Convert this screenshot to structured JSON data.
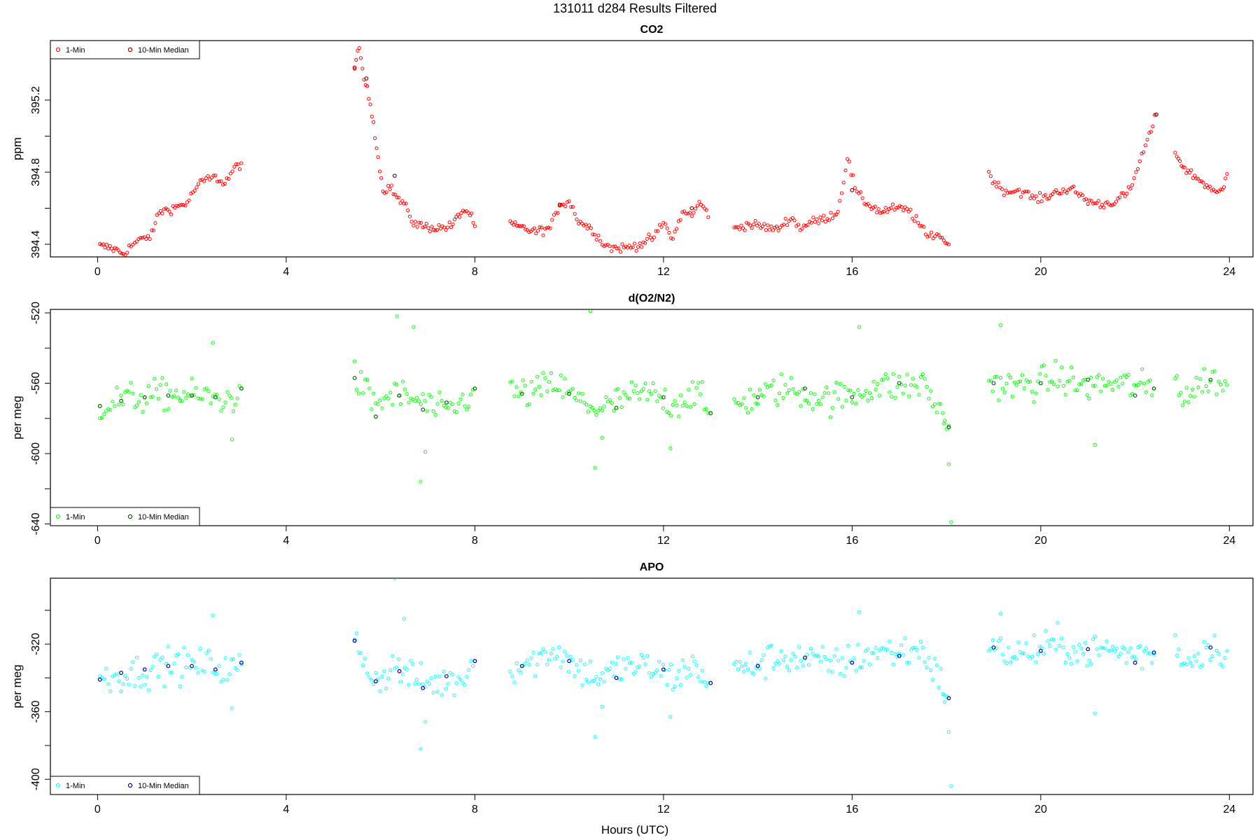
{
  "figure": {
    "title": "131011   d284   Results Filtered",
    "xlabel": "Hours (UTC)"
  },
  "chart_data": [
    {
      "type": "scatter",
      "title": "CO2",
      "xlabel": "",
      "ylabel": "ppm",
      "xlim": [
        -1,
        24.5
      ],
      "ylim": [
        394.33,
        395.53
      ],
      "xticks": [
        0,
        4,
        8,
        12,
        16,
        20,
        24
      ],
      "yticks_labeled": [
        394.4,
        394.8,
        395.2
      ],
      "yticks_minor": [
        394.6,
        395.0
      ],
      "legend": {
        "position": "top-left",
        "entries": [
          "1-Min",
          "10-Min Median"
        ]
      },
      "series": [
        {
          "name": "1-Min",
          "color": "#ff0000",
          "segments": [
            {
              "x": [
                0.05,
                0.3,
                0.55,
                0.75,
                0.95,
                1.15,
                1.3,
                1.6,
                1.9,
                2.1,
                2.3,
                2.5,
                2.7,
                2.9,
                3.05
              ],
              "y": [
                394.39,
                394.38,
                394.35,
                394.4,
                394.43,
                394.45,
                394.58,
                394.6,
                394.63,
                394.72,
                394.76,
                394.77,
                394.74,
                394.82,
                394.85
              ]
            },
            {
              "x": [
                5.45,
                5.55,
                5.65,
                5.75,
                5.85,
                5.95,
                6.05,
                6.2,
                6.35,
                6.5,
                6.7,
                6.9,
                7.2,
                7.5,
                7.75,
                7.9,
                8.0
              ],
              "y": [
                395.38,
                395.48,
                395.32,
                395.22,
                395.08,
                394.88,
                394.7,
                394.72,
                394.66,
                394.62,
                394.52,
                394.5,
                394.49,
                394.5,
                394.59,
                394.57,
                394.5
              ]
            },
            {
              "x": [
                8.75,
                9.0,
                9.3,
                9.6,
                9.8,
                10.0,
                10.2,
                10.5,
                10.7,
                10.9,
                11.2,
                11.5,
                11.8,
                12.0,
                12.2,
                12.4,
                12.6,
                12.8,
                12.95
              ],
              "y": [
                394.51,
                394.49,
                394.47,
                394.49,
                394.62,
                394.64,
                394.53,
                394.48,
                394.41,
                394.38,
                394.38,
                394.4,
                394.44,
                394.52,
                394.43,
                394.58,
                394.56,
                394.64,
                394.55
              ]
            },
            {
              "x": [
                13.5,
                13.8,
                14.1,
                14.4,
                14.7,
                14.9,
                15.1,
                15.4,
                15.7,
                15.9,
                16.1,
                16.3,
                16.6,
                16.9,
                17.2,
                17.4,
                17.6,
                17.8,
                18.05
              ],
              "y": [
                394.49,
                394.51,
                394.5,
                394.48,
                394.55,
                394.49,
                394.52,
                394.54,
                394.58,
                394.88,
                394.68,
                394.63,
                394.58,
                394.6,
                394.59,
                394.52,
                394.44,
                394.46,
                394.4
              ]
            },
            {
              "x": [
                18.9,
                19.1,
                19.3,
                19.5,
                19.7,
                19.9,
                20.1,
                20.4,
                20.7,
                21.0,
                21.3,
                21.6,
                21.9,
                22.1,
                22.3,
                22.45
              ],
              "y": [
                394.79,
                394.72,
                394.69,
                394.7,
                394.68,
                394.65,
                394.66,
                394.7,
                394.7,
                394.64,
                394.62,
                394.64,
                394.7,
                394.86,
                395.0,
                395.12
              ]
            },
            {
              "x": [
                22.85,
                22.95,
                23.05,
                23.55,
                23.7,
                23.85,
                23.95
              ],
              "y": [
                394.92,
                394.86,
                394.82,
                394.72,
                394.68,
                394.7,
                394.79
              ]
            }
          ]
        },
        {
          "name": "10-Min Median",
          "color": "#8b0000",
          "x": [
            5.45,
            5.7,
            6.3,
            9.8,
            12.6,
            16.0,
            22.45
          ],
          "y": [
            395.38,
            395.32,
            394.78,
            394.62,
            394.6,
            394.7,
            395.12
          ]
        }
      ]
    },
    {
      "type": "scatter",
      "title": "d(O2/N2)",
      "xlabel": "",
      "ylabel": "per meg",
      "xlim": [
        -1,
        24.5
      ],
      "ylim": [
        -641,
        -518
      ],
      "xticks": [
        0,
        4,
        8,
        12,
        16,
        20,
        24
      ],
      "yticks_labeled": [
        -520,
        -560,
        -600,
        -640
      ],
      "yticks_minor": [
        -540,
        -580,
        -620
      ],
      "legend": {
        "position": "bottom-left",
        "entries": [
          "1-Min",
          "10-Min Median"
        ]
      },
      "series": [
        {
          "name": "1-Min",
          "color": "#00ff00",
          "segments": [
            {
              "x": [
                0.05,
                0.5,
                1.0,
                1.5,
                2.0,
                2.4,
                2.8,
                3.05
              ],
              "y": [
                -573,
                -569,
                -568,
                -566,
                -567,
                -568,
                -570,
                -563
              ]
            },
            {
              "x": [
                5.45,
                5.9,
                6.3,
                6.9,
                7.3,
                7.7,
                8.0
              ],
              "y": [
                -557,
                -572,
                -566,
                -571,
                -577,
                -572,
                -563
              ]
            },
            {
              "x": [
                8.75,
                9.2,
                9.7,
                10.2,
                10.7,
                11.2,
                11.7,
                12.2,
                12.7,
                12.95
              ],
              "y": [
                -565,
                -566,
                -560,
                -570,
                -575,
                -568,
                -566,
                -572,
                -564,
                -577
              ]
            },
            {
              "x": [
                13.5,
                14.0,
                14.5,
                15.0,
                15.5,
                16.0,
                16.5,
                17.0,
                17.5,
                18.05
              ],
              "y": [
                -572,
                -568,
                -563,
                -566,
                -569,
                -567,
                -561,
                -562,
                -560,
                -584
              ]
            },
            {
              "x": [
                18.9,
                19.4,
                19.9,
                20.4,
                20.9,
                21.4,
                21.9,
                22.4
              ],
              "y": [
                -559,
                -562,
                -560,
                -557,
                -562,
                -560,
                -561,
                -563
              ]
            },
            {
              "x": [
                22.85,
                23.05,
                23.55,
                23.95
              ],
              "y": [
                -556,
                -568,
                -557,
                -561
              ]
            }
          ],
          "outliers": {
            "x": [
              2.45,
              2.85,
              6.35,
              6.7,
              6.85,
              6.95,
              10.45,
              10.55,
              16.15,
              17.95,
              18.05,
              18.1,
              19.15,
              21.15,
              12.15,
              10.7
            ],
            "y": [
              -537,
              -592,
              -522,
              -528,
              -616,
              -599,
              -519,
              -608,
              -528,
              -583,
              -606,
              -639,
              -527,
              -595,
              -597,
              -591
            ]
          }
        },
        {
          "name": "10-Min Median",
          "color": "#006400",
          "x": [
            0.05,
            0.5,
            1.0,
            1.5,
            2.0,
            2.5,
            3.05,
            5.45,
            5.9,
            6.4,
            6.9,
            7.4,
            8.0,
            9.0,
            10.0,
            11.0,
            12.0,
            13.0,
            14.0,
            15.0,
            16.0,
            17.0,
            18.05,
            19.0,
            20.0,
            21.0,
            22.0,
            22.4,
            23.6
          ],
          "y": [
            -573,
            -570,
            -568,
            -567,
            -567,
            -568,
            -563,
            -557,
            -579,
            -567,
            -575,
            -571,
            -563,
            -566,
            -566,
            -574,
            -568,
            -577,
            -568,
            -563,
            -568,
            -560,
            -585,
            -560,
            -560,
            -558,
            -567,
            -563,
            -558
          ]
        }
      ]
    },
    {
      "type": "scatter",
      "title": "APO",
      "xlabel": "",
      "ylabel": "per meg",
      "xlim": [
        -1,
        24.5
      ],
      "ylim": [
        -409,
        -281
      ],
      "xticks": [
        0,
        4,
        8,
        12,
        16,
        20,
        24
      ],
      "yticks_labeled": [
        -320,
        -360,
        -400
      ],
      "yticks_minor": [
        -300,
        -340,
        -380
      ],
      "legend": {
        "position": "bottom-left",
        "entries": [
          "1-Min",
          "10-Min Median"
        ]
      },
      "series": [
        {
          "name": "1-Min",
          "color": "#00ffff",
          "segments": [
            {
              "x": [
                0.05,
                0.5,
                1.0,
                1.5,
                2.0,
                2.4,
                2.8,
                3.05
              ],
              "y": [
                -341,
                -338,
                -336,
                -332,
                -333,
                -332,
                -336,
                -332
              ]
            },
            {
              "x": [
                5.45,
                5.9,
                6.3,
                6.9,
                7.3,
                7.7,
                8.0
              ],
              "y": [
                -318,
                -342,
                -333,
                -343,
                -343,
                -341,
                -330
              ]
            },
            {
              "x": [
                8.75,
                9.2,
                9.7,
                10.2,
                10.7,
                11.2,
                11.7,
                12.2,
                12.7,
                12.95
              ],
              "y": [
                -333,
                -331,
                -323,
                -335,
                -340,
                -333,
                -334,
                -340,
                -332,
                -343
              ]
            },
            {
              "x": [
                13.5,
                14.0,
                14.5,
                15.0,
                15.5,
                16.0,
                16.5,
                17.0,
                17.5,
                18.05
              ],
              "y": [
                -336,
                -332,
                -327,
                -329,
                -332,
                -330,
                -324,
                -325,
                -323,
                -352
              ]
            },
            {
              "x": [
                18.9,
                19.4,
                19.9,
                20.4,
                20.9,
                21.4,
                21.9,
                22.4
              ],
              "y": [
                -322,
                -326,
                -324,
                -320,
                -325,
                -323,
                -326,
                -326
              ]
            },
            {
              "x": [
                22.85,
                23.05,
                23.55,
                23.95
              ],
              "y": [
                -318,
                -332,
                -321,
                -324
              ]
            }
          ],
          "outliers": {
            "x": [
              2.45,
              2.85,
              6.3,
              6.5,
              6.85,
              6.95,
              10.45,
              10.55,
              16.15,
              17.95,
              18.05,
              18.1,
              19.15,
              21.15,
              12.15,
              10.7
            ],
            "y": [
              -303,
              -358,
              -281,
              -305,
              -382,
              -366,
              -280,
              -375,
              -301,
              -350,
              -372,
              -404,
              -302,
              -361,
              -363,
              -357
            ]
          }
        },
        {
          "name": "10-Min Median",
          "color": "#00008b",
          "x": [
            0.05,
            0.5,
            1.0,
            1.5,
            2.0,
            2.5,
            3.05,
            5.45,
            5.9,
            6.4,
            6.9,
            7.4,
            8.0,
            9.0,
            10.0,
            11.0,
            12.0,
            13.0,
            14.0,
            15.0,
            16.0,
            17.0,
            18.05,
            19.0,
            20.0,
            21.0,
            22.0,
            22.4,
            23.6
          ],
          "y": [
            -341,
            -337,
            -335,
            -333,
            -333,
            -335,
            -331,
            -318,
            -342,
            -336,
            -346,
            -339,
            -330,
            -333,
            -330,
            -340,
            -335,
            -343,
            -333,
            -328,
            -331,
            -327,
            -352,
            -322,
            -324,
            -323,
            -331,
            -325,
            -322
          ]
        }
      ]
    }
  ]
}
